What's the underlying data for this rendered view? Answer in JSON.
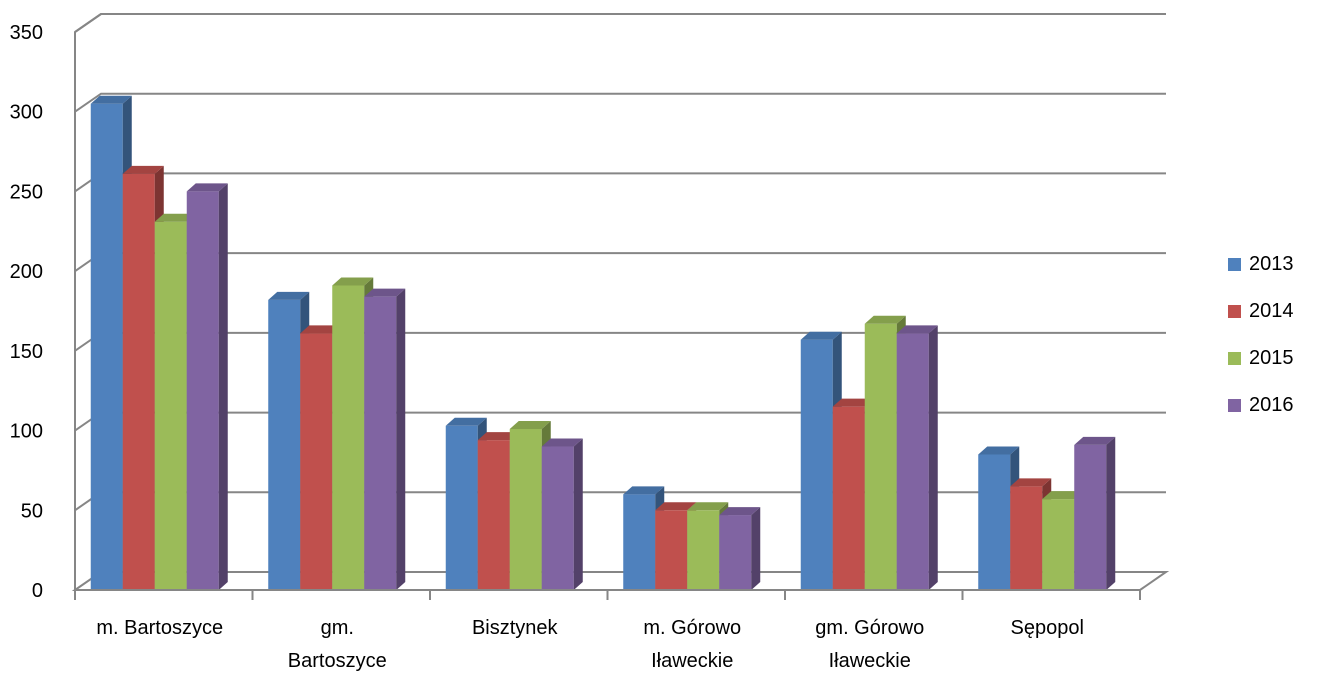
{
  "chart_data": {
    "type": "bar",
    "categories": [
      [
        "m. Bartoszyce"
      ],
      [
        "gm.",
        "Bartoszyce"
      ],
      [
        "Bisztynek"
      ],
      [
        "m. Górowo",
        "Iławeckie"
      ],
      [
        "gm. Górowo",
        "Iławeckie"
      ],
      [
        "Sępopol"
      ]
    ],
    "series": [
      {
        "name": "2013",
        "color": "#4F81BD",
        "values": [
          305,
          182,
          103,
          60,
          157,
          85
        ]
      },
      {
        "name": "2014",
        "color": "#C0504D",
        "values": [
          261,
          161,
          94,
          50,
          115,
          65
        ]
      },
      {
        "name": "2015",
        "color": "#9BBB59",
        "values": [
          231,
          191,
          101,
          50,
          167,
          57
        ]
      },
      {
        "name": "2016",
        "color": "#8064A2",
        "values": [
          250,
          184,
          90,
          47,
          161,
          91
        ]
      }
    ],
    "ylim": [
      0,
      350
    ],
    "yticks": [
      "0",
      "50",
      "100",
      "150",
      "200",
      "250",
      "300",
      "350"
    ],
    "grid": true,
    "legend_position": "right",
    "three_d": true
  }
}
